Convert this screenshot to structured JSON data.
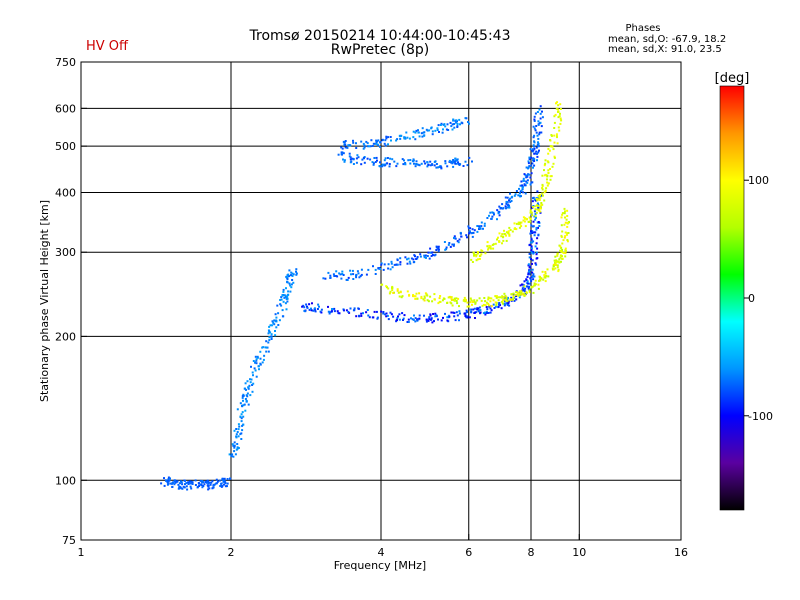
{
  "header": {
    "title_line1": "Tromsø 20150214 10:44:00-10:45:43",
    "title_line2": "RwPretec (8p)",
    "hv_status": "HV Off",
    "hv_color": "#cc0000",
    "phases": {
      "heading": "Phases",
      "o_line": "mean, sd,O: -67.9, 18.2",
      "x_line": "mean, sd,X:  91.0, 23.5"
    }
  },
  "chart_data": {
    "type": "scatter",
    "title": "Tromsø 20150214 10:44:00-10:45:43",
    "subtitle": "RwPretec (8p)",
    "xlabel": "Frequency [MHz]",
    "ylabel": "Stationary phase Virtual Height [km]",
    "x_scale": "log",
    "y_scale": "log",
    "xlim": [
      1,
      16
    ],
    "ylim": [
      75,
      750
    ],
    "x_ticks": [
      1,
      2,
      4,
      6,
      8,
      10,
      16
    ],
    "x_tick_labels": [
      "1",
      "2",
      "4",
      "6",
      "8",
      "10",
      "16"
    ],
    "y_ticks": [
      75,
      100,
      200,
      300,
      400,
      500,
      600,
      750
    ],
    "y_tick_labels": [
      "75",
      "100",
      "200",
      "300",
      "400",
      "500",
      "600",
      "750"
    ],
    "x_grid": [
      2,
      4,
      6,
      8,
      10
    ],
    "y_grid": [
      100,
      200,
      300,
      400,
      500,
      600
    ],
    "grid": true,
    "colorbar": {
      "label": "[deg]",
      "range": [
        -180,
        180
      ],
      "ticks": [
        100,
        0,
        -100
      ],
      "tick_labels": [
        "100",
        "0",
        "-100"
      ],
      "colors": [
        "#000000",
        "#5a00a0",
        "#0000ff",
        "#0096ff",
        "#00ffff",
        "#00ff00",
        "#b4ff00",
        "#ffff00",
        "#ff9600",
        "#ff0000"
      ]
    },
    "traces": [
      {
        "id": "e_layer",
        "points": [
          [
            1.45,
            100
          ],
          [
            1.52,
            99
          ],
          [
            1.6,
            98
          ],
          [
            1.7,
            99
          ],
          [
            1.8,
            98
          ],
          [
            1.9,
            99
          ],
          [
            1.95,
            100
          ]
        ],
        "phase": [
          -80,
          -70
        ]
      },
      {
        "id": "f1_o",
        "points": [
          [
            2.0,
            112
          ],
          [
            2.05,
            125
          ],
          [
            2.1,
            140
          ],
          [
            2.15,
            155
          ],
          [
            2.25,
            175
          ],
          [
            2.35,
            195
          ],
          [
            2.45,
            215
          ],
          [
            2.55,
            240
          ],
          [
            2.6,
            260
          ],
          [
            2.65,
            275
          ]
        ],
        "phase": [
          -75,
          -55
        ]
      },
      {
        "id": "f2_low_o",
        "points": [
          [
            2.75,
            232
          ],
          [
            3.0,
            230
          ],
          [
            3.5,
            226
          ],
          [
            4.0,
            222
          ],
          [
            4.5,
            219
          ],
          [
            5.0,
            219
          ],
          [
            5.5,
            221
          ],
          [
            6.0,
            224
          ],
          [
            6.5,
            228
          ],
          [
            7.0,
            235
          ],
          [
            7.5,
            245
          ],
          [
            7.8,
            258
          ],
          [
            8.0,
            275
          ],
          [
            8.05,
            300
          ],
          [
            8.1,
            330
          ],
          [
            8.15,
            360
          ],
          [
            8.2,
            400
          ]
        ],
        "phase": [
          -110,
          -60
        ]
      },
      {
        "id": "f2_low_x",
        "points": [
          [
            4.0,
            255
          ],
          [
            4.5,
            246
          ],
          [
            5.0,
            242
          ],
          [
            5.5,
            238
          ],
          [
            6.0,
            236
          ],
          [
            6.5,
            237
          ],
          [
            7.0,
            240
          ],
          [
            7.5,
            245
          ],
          [
            8.0,
            255
          ],
          [
            8.5,
            268
          ],
          [
            9.0,
            285
          ],
          [
            9.2,
            300
          ],
          [
            9.3,
            330
          ],
          [
            9.35,
            370
          ]
        ],
        "phase": [
          60,
          110
        ]
      },
      {
        "id": "f2_high_o",
        "points": [
          [
            3.0,
            268
          ],
          [
            3.5,
            270
          ],
          [
            4.0,
            280
          ],
          [
            4.5,
            290
          ],
          [
            5.0,
            300
          ],
          [
            5.5,
            315
          ],
          [
            6.0,
            332
          ],
          [
            6.5,
            350
          ],
          [
            7.0,
            375
          ],
          [
            7.5,
            400
          ],
          [
            7.8,
            420
          ],
          [
            8.0,
            450
          ],
          [
            8.1,
            490
          ],
          [
            8.2,
            540
          ],
          [
            8.3,
            600
          ]
        ],
        "phase": [
          -90,
          -60
        ]
      },
      {
        "id": "f2_high_x",
        "points": [
          [
            6.0,
            290
          ],
          [
            6.5,
            305
          ],
          [
            7.0,
            325
          ],
          [
            7.5,
            345
          ],
          [
            8.0,
            360
          ],
          [
            8.3,
            380
          ],
          [
            8.5,
            420
          ],
          [
            8.7,
            470
          ],
          [
            8.9,
            540
          ],
          [
            9.1,
            610
          ]
        ],
        "phase": [
          70,
          100
        ]
      },
      {
        "id": "multi_hop",
        "points": [
          [
            3.3,
            480
          ],
          [
            3.6,
            470
          ],
          [
            4.0,
            465
          ],
          [
            4.5,
            462
          ],
          [
            5.0,
            460
          ],
          [
            5.5,
            462
          ],
          [
            6.0,
            466
          ]
        ],
        "phase": [
          -85,
          -60
        ]
      },
      {
        "id": "multi_hop_upper",
        "points": [
          [
            3.3,
            505
          ],
          [
            3.7,
            505
          ],
          [
            4.0,
            510
          ],
          [
            4.5,
            525
          ],
          [
            5.0,
            540
          ],
          [
            5.5,
            555
          ],
          [
            5.9,
            570
          ]
        ],
        "phase": [
          -80,
          -55
        ]
      }
    ]
  }
}
